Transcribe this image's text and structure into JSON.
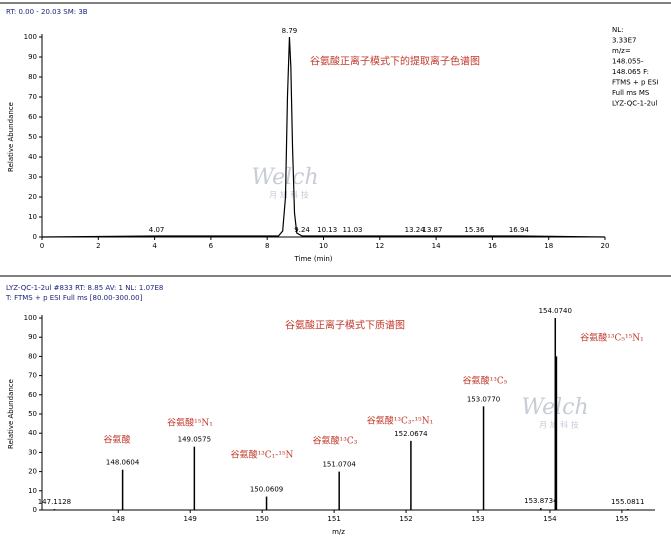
{
  "chart_data": [
    {
      "type": "line",
      "header": [
        "RT: 0.00 - 20.03   SM: 3B"
      ],
      "title": "谷氨酸正离子模式下的提取离子色谱图",
      "info": [
        "NL:",
        "3.33E7",
        "m/z=",
        "148.055-",
        "148.065 F:",
        "FTMS + p ESI",
        "Full ms MS",
        "LYZ-QC-1-2ul"
      ],
      "watermark": [
        "Welch",
        "月 旭 科 技"
      ],
      "xlabel": "Time (min)",
      "ylabel": "Relative Abundance",
      "color": "#000000",
      "x": [
        0,
        4.07,
        8.4,
        8.55,
        8.65,
        8.72,
        8.79,
        8.84,
        8.9,
        8.97,
        9.05,
        9.24,
        10.13,
        11.03,
        13.24,
        13.87,
        15.36,
        16.94,
        20
      ],
      "values": [
        0,
        0.5,
        0.5,
        3,
        20,
        70,
        100,
        85,
        45,
        12,
        2,
        0.5,
        0.5,
        0.5,
        0.5,
        0.5,
        0.5,
        0.5,
        0
      ],
      "peak_labels": [
        8.79,
        4.07,
        9.24,
        10.13,
        11.03,
        13.24,
        13.87,
        15.36,
        16.94
      ],
      "xlim": [
        0,
        20
      ],
      "xticks": [
        0,
        2,
        4,
        6,
        8,
        10,
        12,
        14,
        16,
        18,
        20
      ],
      "ylim": [
        0,
        100
      ],
      "yticks": [
        0,
        10,
        20,
        30,
        40,
        50,
        60,
        70,
        80,
        90,
        100
      ]
    },
    {
      "type": "stick",
      "header": [
        "LYZ-QC-1-2ul #833   RT: 8.85   AV: 1   NL: 1.07E8",
        "T: FTMS + p ESI Full ms [80.00-300.00]"
      ],
      "title": "谷氨酸正离子模式下质谱图",
      "watermark": [
        "Welch",
        "月 旭 科 技"
      ],
      "xlabel": "m/z",
      "ylabel": "Relative Abundance",
      "color": "#000000",
      "x": [
        147.1128,
        148.0604,
        149.0575,
        150.0609,
        151.0704,
        152.0674,
        153.077,
        153.8734,
        154.074,
        154.09,
        155.0811
      ],
      "x_labels": [
        "147.1128",
        "148.0604",
        "149.0575",
        "150.0609",
        "151.0704",
        "152.0674",
        "153.0770",
        "153.8734",
        "154.0740",
        null,
        "155.0811"
      ],
      "values": [
        0.5,
        21,
        33,
        7,
        20,
        36,
        54,
        1,
        100,
        80,
        0.5
      ],
      "annotations": [
        "谷氨酸",
        "谷氨酸¹⁵N₁",
        "谷氨酸¹³C₁-¹⁵N",
        "谷氨酸¹³C₃",
        "谷氨酸¹³C₃-¹⁵N₁",
        "谷氨酸¹³C₅",
        "谷氨酸¹³C₅¹⁵N₁"
      ],
      "xlim": [
        146.94,
        155.46
      ],
      "xticks": [
        148,
        149,
        150,
        151,
        152,
        153,
        154,
        155
      ],
      "ylim": [
        0,
        100
      ],
      "yticks": [
        0,
        10,
        20,
        30,
        40,
        50,
        60,
        70,
        80,
        90,
        100
      ]
    }
  ]
}
